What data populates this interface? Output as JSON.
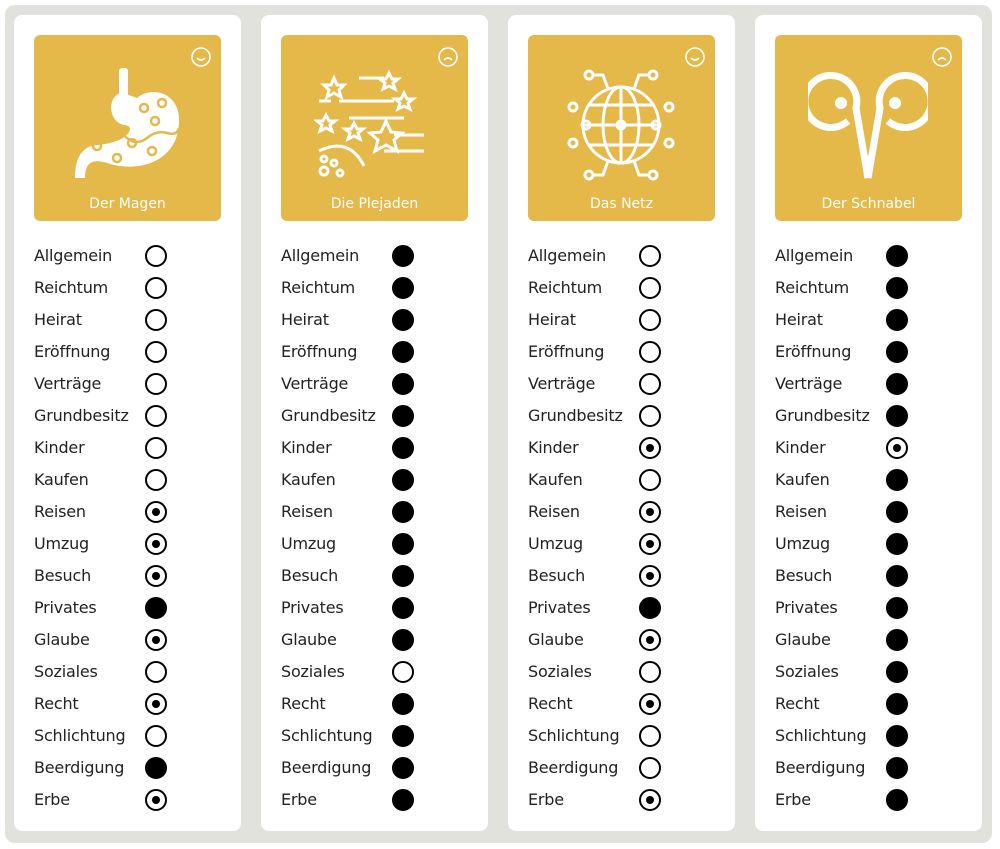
{
  "accent_color": "#e5b84a",
  "legend_states": {
    "e": "empty",
    "d": "dotted",
    "f": "filled"
  },
  "categories": [
    "Allgemein",
    "Reichtum",
    "Heirat",
    "Eröffnung",
    "Verträge",
    "Grundbesitz",
    "Kinder",
    "Kaufen",
    "Reisen",
    "Umzug",
    "Besuch",
    "Privates",
    "Glaube",
    "Soziales",
    "Recht",
    "Schlichtung",
    "Beerdigung",
    "Erbe"
  ],
  "cards": [
    {
      "name": "Der Magen",
      "icon": "stomach-icon",
      "mood": "smile-icon",
      "states": [
        "e",
        "e",
        "e",
        "e",
        "e",
        "e",
        "e",
        "e",
        "d",
        "d",
        "d",
        "f",
        "d",
        "e",
        "d",
        "e",
        "f",
        "d"
      ]
    },
    {
      "name": "Die Plejaden",
      "icon": "stars-icon",
      "mood": "frown-icon",
      "states": [
        "f",
        "f",
        "f",
        "f",
        "f",
        "f",
        "f",
        "f",
        "f",
        "f",
        "f",
        "f",
        "f",
        "e",
        "f",
        "f",
        "f",
        "f"
      ]
    },
    {
      "name": "Das Netz",
      "icon": "network-globe-icon",
      "mood": "smile-icon",
      "states": [
        "e",
        "e",
        "e",
        "e",
        "e",
        "e",
        "d",
        "e",
        "d",
        "d",
        "d",
        "f",
        "d",
        "e",
        "d",
        "e",
        "e",
        "d"
      ]
    },
    {
      "name": "Der Schnabel",
      "icon": "owl-beak-icon",
      "mood": "frown-icon",
      "states": [
        "f",
        "f",
        "f",
        "f",
        "f",
        "f",
        "d",
        "f",
        "f",
        "f",
        "f",
        "f",
        "f",
        "f",
        "f",
        "f",
        "f",
        "f"
      ]
    }
  ]
}
